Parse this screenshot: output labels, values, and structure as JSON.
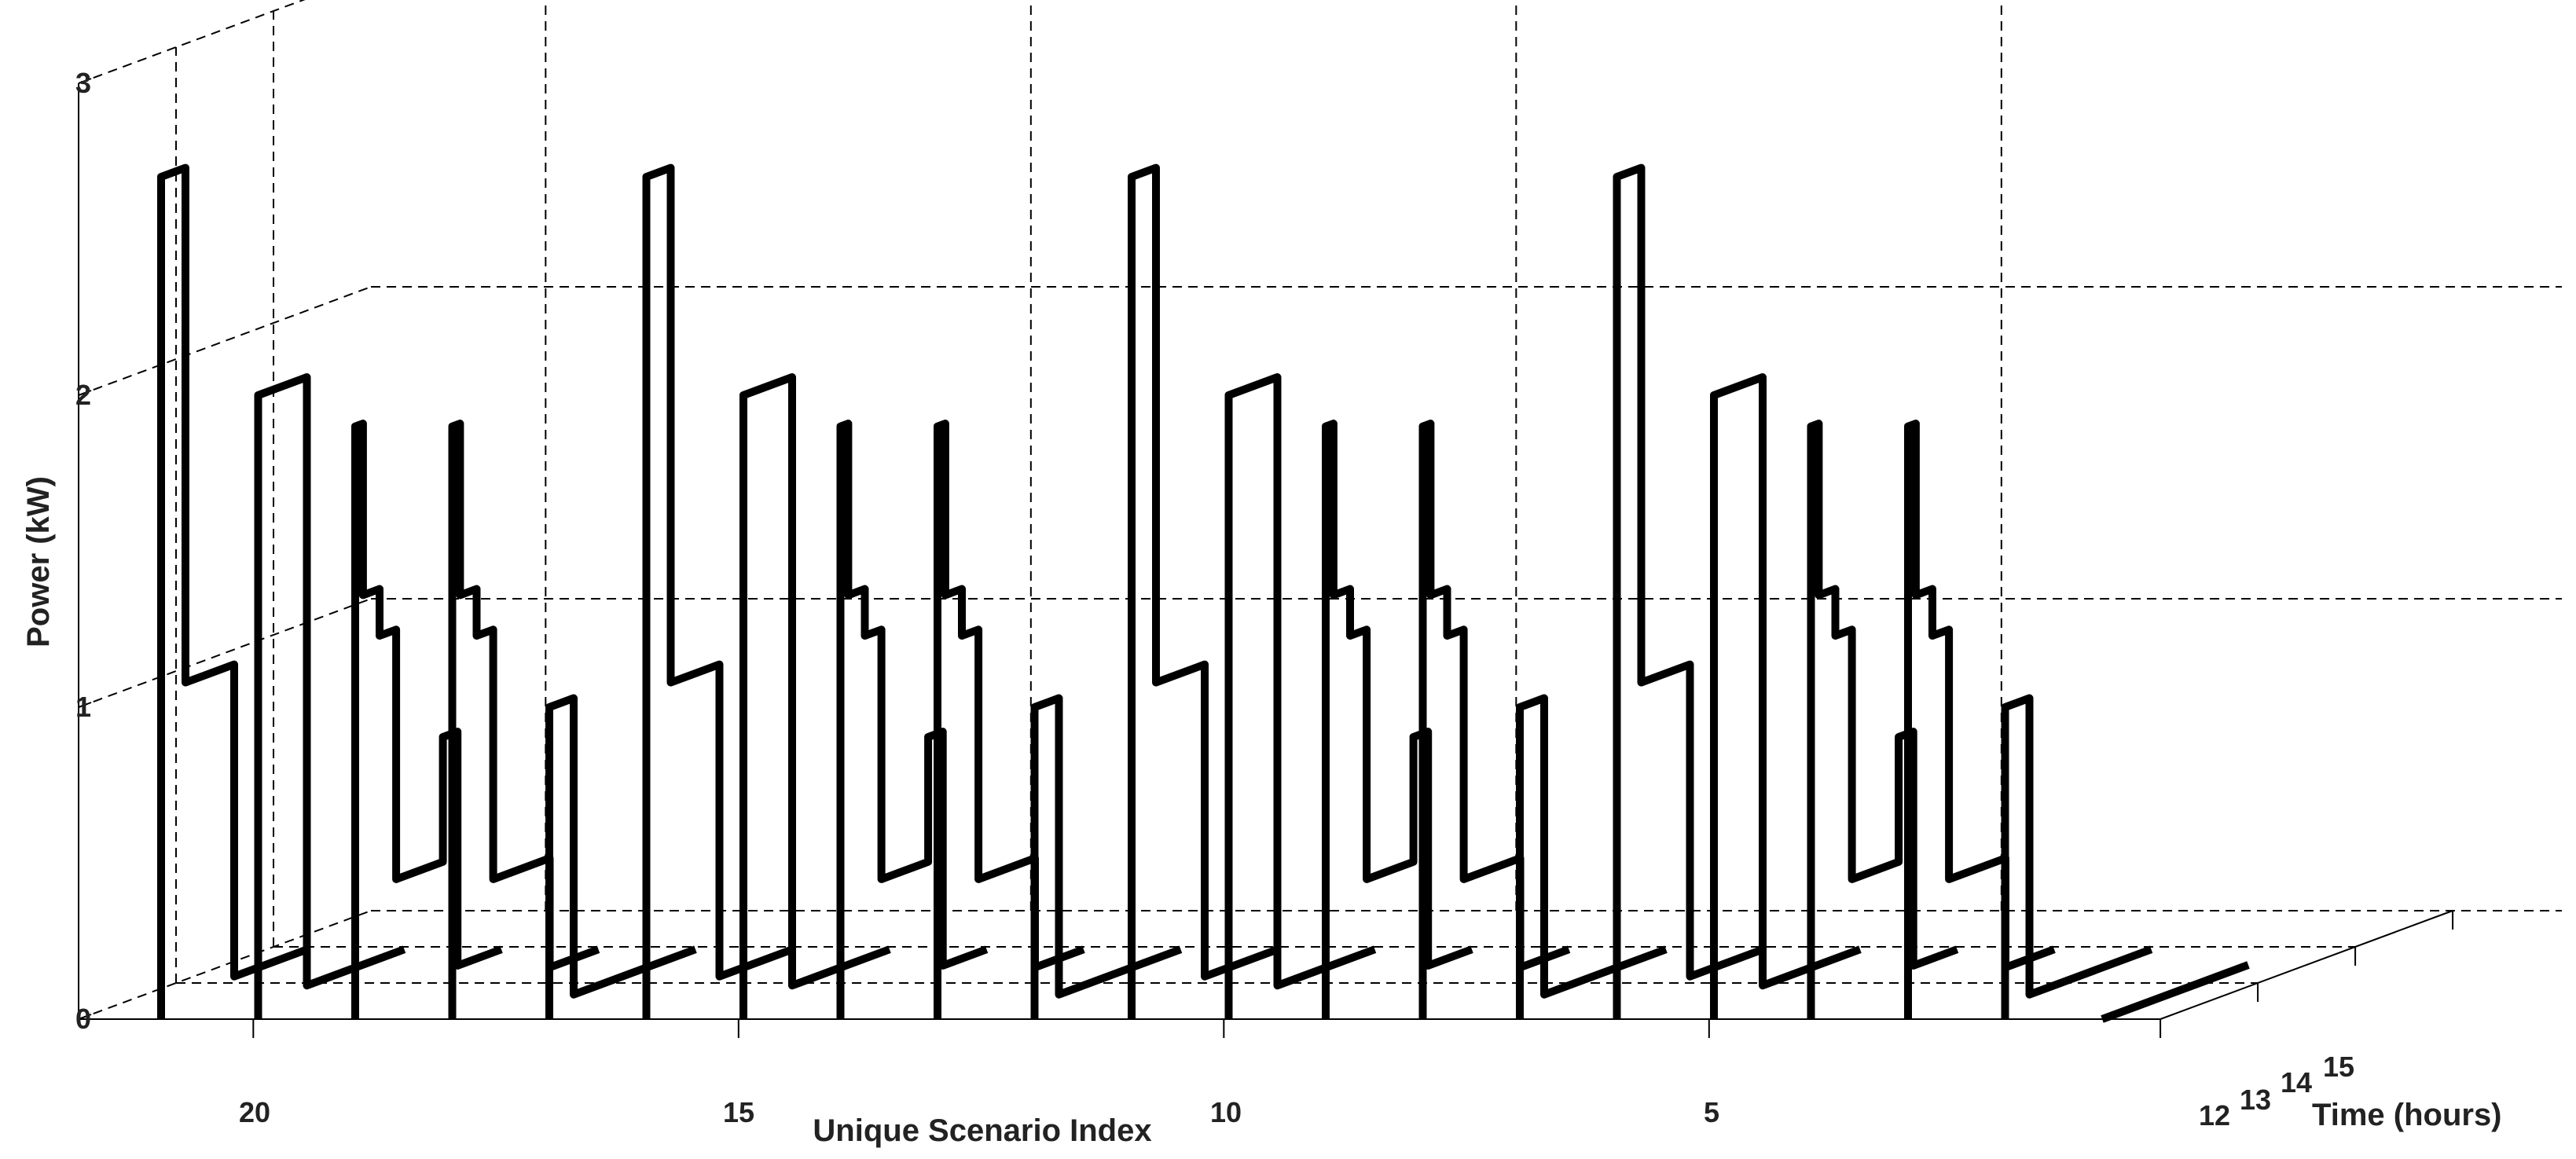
{
  "chart_data": {
    "type": "line",
    "subtype": "3d-waterfall",
    "xlabel": "Unique Scenario Index",
    "ylabel": "Power (kW)",
    "zlabel": "Time (hours)",
    "x_tick_labels": [
      "20",
      "15",
      "10",
      "5"
    ],
    "y_tick_labels": [
      "0",
      "1",
      "2",
      "3"
    ],
    "z_tick_labels": [
      "12",
      "13",
      "14",
      "15"
    ],
    "ylim": [
      0,
      3
    ],
    "zlim": [
      12,
      15
    ],
    "grid": true,
    "line_color": "#000000",
    "scenario_order": [
      21,
      20,
      19,
      18,
      17,
      16,
      15,
      14,
      13,
      12,
      11,
      10,
      9,
      8,
      7,
      6,
      5,
      4,
      3,
      2,
      1
    ],
    "series": [
      {
        "scenario": 21,
        "segments": [
          {
            "t": [
              12.0,
              12.25
            ],
            "p": 2.7
          },
          {
            "t": [
              12.25,
              12.75
            ],
            "p": 1.05
          },
          {
            "t": [
              12.75,
              13.5
            ],
            "p": 0.05
          }
        ]
      },
      {
        "scenario": 20,
        "segments": [
          {
            "t": [
              12.0,
              12.5
            ],
            "p": 2.0
          },
          {
            "t": [
              12.5,
              13.5
            ],
            "p": 0.05
          }
        ]
      },
      {
        "scenario": 19,
        "segments": [
          {
            "t": [
              12.0,
              12.08
            ],
            "p": 1.9
          },
          {
            "t": [
              12.08,
              12.25
            ],
            "p": 1.35
          },
          {
            "t": [
              12.25,
              12.42
            ],
            "p": 1.2
          },
          {
            "t": [
              12.42,
              12.9
            ],
            "p": 0.4
          },
          {
            "t": [
              12.9,
              13.05
            ],
            "p": 0.8
          },
          {
            "t": [
              13.05,
              13.5
            ],
            "p": 0.05
          }
        ]
      },
      {
        "scenario": 18,
        "segments": [
          {
            "t": [
              12.0,
              12.08
            ],
            "p": 1.9
          },
          {
            "t": [
              12.08,
              12.25
            ],
            "p": 1.35
          },
          {
            "t": [
              12.25,
              12.42
            ],
            "p": 1.2
          },
          {
            "t": [
              12.42,
              13.0
            ],
            "p": 0.4
          },
          {
            "t": [
              13.0,
              13.5
            ],
            "p": 0.05
          }
        ]
      },
      {
        "scenario": 17,
        "segments": [
          {
            "t": [
              12.0,
              12.25
            ],
            "p": 1.0
          },
          {
            "t": [
              12.25,
              13.5
            ],
            "p": 0.05
          }
        ]
      },
      {
        "scenario": 16,
        "segments": [
          {
            "t": [
              12.0,
              12.25
            ],
            "p": 2.7
          },
          {
            "t": [
              12.25,
              12.75
            ],
            "p": 1.05
          },
          {
            "t": [
              12.75,
              13.5
            ],
            "p": 0.05
          }
        ]
      },
      {
        "scenario": 15,
        "segments": [
          {
            "t": [
              12.0,
              12.5
            ],
            "p": 2.0
          },
          {
            "t": [
              12.5,
              13.5
            ],
            "p": 0.05
          }
        ]
      },
      {
        "scenario": 14,
        "segments": [
          {
            "t": [
              12.0,
              12.08
            ],
            "p": 1.9
          },
          {
            "t": [
              12.08,
              12.25
            ],
            "p": 1.35
          },
          {
            "t": [
              12.25,
              12.42
            ],
            "p": 1.2
          },
          {
            "t": [
              12.42,
              12.9
            ],
            "p": 0.4
          },
          {
            "t": [
              12.9,
              13.05
            ],
            "p": 0.8
          },
          {
            "t": [
              13.05,
              13.5
            ],
            "p": 0.05
          }
        ]
      },
      {
        "scenario": 13,
        "segments": [
          {
            "t": [
              12.0,
              12.08
            ],
            "p": 1.9
          },
          {
            "t": [
              12.08,
              12.25
            ],
            "p": 1.35
          },
          {
            "t": [
              12.25,
              12.42
            ],
            "p": 1.2
          },
          {
            "t": [
              12.42,
              13.0
            ],
            "p": 0.4
          },
          {
            "t": [
              13.0,
              13.5
            ],
            "p": 0.05
          }
        ]
      },
      {
        "scenario": 12,
        "segments": [
          {
            "t": [
              12.0,
              12.25
            ],
            "p": 1.0
          },
          {
            "t": [
              12.25,
              13.5
            ],
            "p": 0.05
          }
        ]
      },
      {
        "scenario": 11,
        "segments": [
          {
            "t": [
              12.0,
              12.25
            ],
            "p": 2.7
          },
          {
            "t": [
              12.25,
              12.75
            ],
            "p": 1.05
          },
          {
            "t": [
              12.75,
              13.5
            ],
            "p": 0.05
          }
        ]
      },
      {
        "scenario": 10,
        "segments": [
          {
            "t": [
              12.0,
              12.5
            ],
            "p": 2.0
          },
          {
            "t": [
              12.5,
              13.5
            ],
            "p": 0.05
          }
        ]
      },
      {
        "scenario": 9,
        "segments": [
          {
            "t": [
              12.0,
              12.08
            ],
            "p": 1.9
          },
          {
            "t": [
              12.08,
              12.25
            ],
            "p": 1.35
          },
          {
            "t": [
              12.25,
              12.42
            ],
            "p": 1.2
          },
          {
            "t": [
              12.42,
              12.9
            ],
            "p": 0.4
          },
          {
            "t": [
              12.9,
              13.05
            ],
            "p": 0.8
          },
          {
            "t": [
              13.05,
              13.5
            ],
            "p": 0.05
          }
        ]
      },
      {
        "scenario": 8,
        "segments": [
          {
            "t": [
              12.0,
              12.08
            ],
            "p": 1.9
          },
          {
            "t": [
              12.08,
              12.25
            ],
            "p": 1.35
          },
          {
            "t": [
              12.25,
              12.42
            ],
            "p": 1.2
          },
          {
            "t": [
              12.42,
              13.0
            ],
            "p": 0.4
          },
          {
            "t": [
              13.0,
              13.5
            ],
            "p": 0.05
          }
        ]
      },
      {
        "scenario": 7,
        "segments": [
          {
            "t": [
              12.0,
              12.25
            ],
            "p": 1.0
          },
          {
            "t": [
              12.25,
              13.5
            ],
            "p": 0.05
          }
        ]
      },
      {
        "scenario": 6,
        "segments": [
          {
            "t": [
              12.0,
              12.25
            ],
            "p": 2.7
          },
          {
            "t": [
              12.25,
              12.75
            ],
            "p": 1.05
          },
          {
            "t": [
              12.75,
              13.5
            ],
            "p": 0.05
          }
        ]
      },
      {
        "scenario": 5,
        "segments": [
          {
            "t": [
              12.0,
              12.5
            ],
            "p": 2.0
          },
          {
            "t": [
              12.5,
              13.5
            ],
            "p": 0.05
          }
        ]
      },
      {
        "scenario": 4,
        "segments": [
          {
            "t": [
              12.0,
              12.08
            ],
            "p": 1.9
          },
          {
            "t": [
              12.08,
              12.25
            ],
            "p": 1.35
          },
          {
            "t": [
              12.25,
              12.42
            ],
            "p": 1.2
          },
          {
            "t": [
              12.42,
              12.9
            ],
            "p": 0.4
          },
          {
            "t": [
              12.9,
              13.05
            ],
            "p": 0.8
          },
          {
            "t": [
              13.05,
              13.5
            ],
            "p": 0.05
          }
        ]
      },
      {
        "scenario": 3,
        "segments": [
          {
            "t": [
              12.0,
              12.08
            ],
            "p": 1.9
          },
          {
            "t": [
              12.08,
              12.25
            ],
            "p": 1.35
          },
          {
            "t": [
              12.25,
              12.42
            ],
            "p": 1.2
          },
          {
            "t": [
              12.42,
              13.0
            ],
            "p": 0.4
          },
          {
            "t": [
              13.0,
              13.5
            ],
            "p": 0.05
          }
        ]
      },
      {
        "scenario": 2,
        "segments": [
          {
            "t": [
              12.0,
              12.25
            ],
            "p": 1.0
          },
          {
            "t": [
              12.25,
              13.5
            ],
            "p": 0.05
          }
        ]
      },
      {
        "scenario": 1,
        "segments": [
          {
            "t": [
              12.0,
              13.5
            ],
            "p": 0.0
          }
        ]
      }
    ]
  }
}
